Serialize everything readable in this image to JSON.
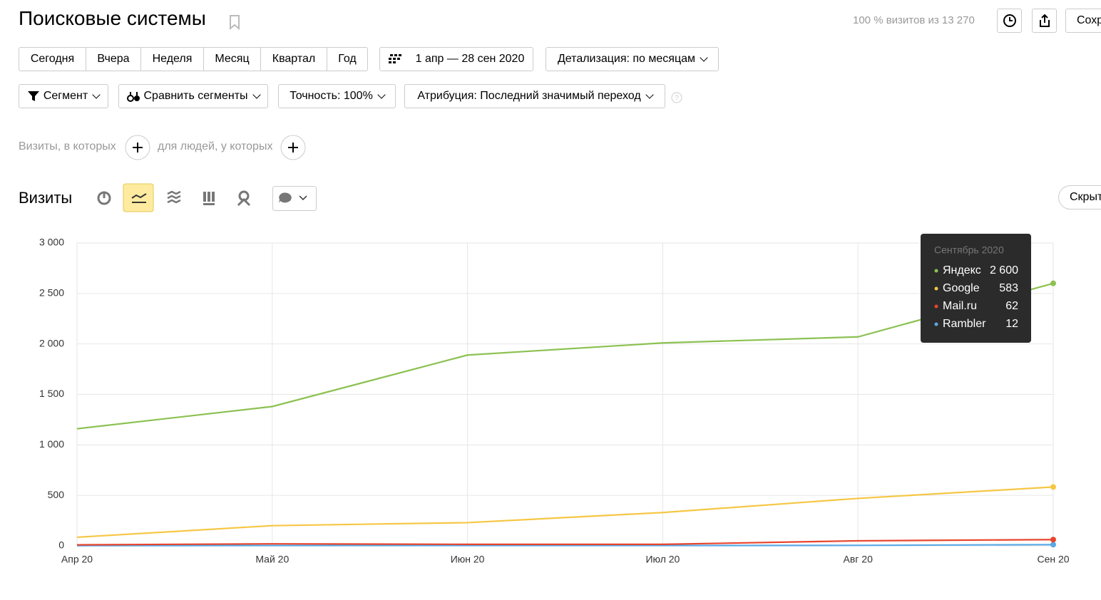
{
  "header": {
    "title": "Поисковые системы",
    "visits_info": "100 % визитов из 13 270",
    "save_button": "Сохр"
  },
  "period_buttons": [
    "Сегодня",
    "Вчера",
    "Неделя",
    "Месяц",
    "Квартал",
    "Год"
  ],
  "date_range": "1 апр — 28 сен 2020",
  "detail": "Детализация: по месяцам",
  "filters": [
    "Сегмент",
    "Сравнить сегменты",
    "Точность: 100%",
    "Атрибуция: Последний значимый переход"
  ],
  "segment_builder": {
    "visits_text": "Визиты, в которых",
    "people_text": "для людей, у которых"
  },
  "chart_header": {
    "title": "Визиты",
    "hide_button": "Скрыт"
  },
  "chart_data": {
    "type": "line",
    "categories": [
      "Апр 20",
      "Май 20",
      "Июн 20",
      "Июл 20",
      "Авг 20",
      "Сен 20"
    ],
    "series": [
      {
        "name": "Яндекс",
        "color": "#8cc152",
        "values": [
          1160,
          1380,
          1890,
          2010,
          2070,
          2600
        ],
        "value_labels": [
          null,
          null,
          null,
          null,
          null,
          "2 600"
        ]
      },
      {
        "name": "Google",
        "color": "#f6c744",
        "values": [
          85,
          200,
          230,
          330,
          470,
          583
        ]
      },
      {
        "name": "Mail.ru",
        "color": "#e8452c",
        "values": [
          10,
          20,
          15,
          15,
          50,
          62
        ]
      },
      {
        "name": "Rambler",
        "color": "#5aa9e6",
        "values": [
          2,
          3,
          3,
          3,
          5,
          12
        ]
      }
    ],
    "ylim": [
      0,
      3000
    ],
    "yticks": [
      0,
      500,
      {
        "value": 1000,
        "label": "1 000"
      },
      {
        "value": 1500,
        "label": "1 500"
      },
      {
        "value": 2000,
        "label": "2 000"
      },
      {
        "value": 2500,
        "label": "2 500"
      },
      {
        "value": 3000,
        "label": "3 000"
      }
    ],
    "grid": true,
    "tooltip_title": "Сентябрь 2020"
  }
}
